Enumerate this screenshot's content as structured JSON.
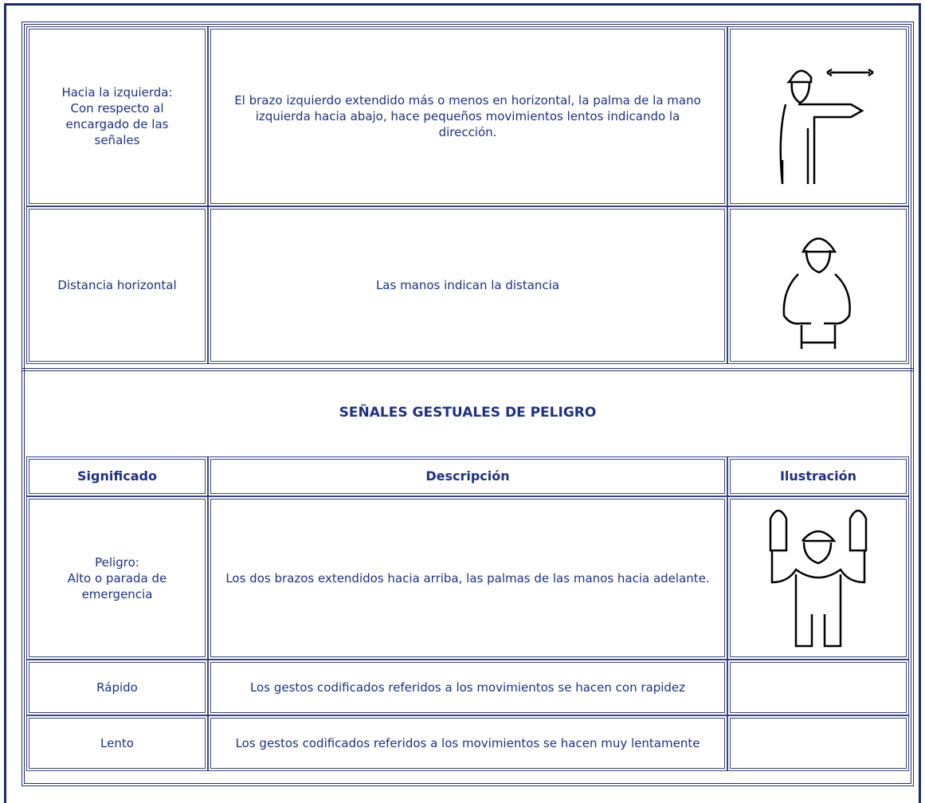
{
  "table_top": {
    "rows": [
      [
        "Hacia la izquierda:\nCon respecto al encargado de las señales",
        "El brazo izquierdo extendido más o menos en horizontal, la palma de la mano izquierda hacia abajo, hace pequeños movimientos lentos indicando la dirección."
      ],
      [
        "Distancia horizontal",
        "Las manos indican la distancia"
      ]
    ]
  },
  "section": {
    "title": "SEÑALES GESTUALES DE PELIGRO",
    "header": [
      "Significado",
      "Descripción",
      "Ilustración"
    ],
    "rows": [
      [
        "Peligro:\nAlto o parada de emergencia",
        "Los dos brazos extendidos hacia arriba, las palmas de las manos hacia adelante."
      ],
      [
        "Rápido",
        "Los gestos codificados referidos a los movimientos se hacen con rapidez"
      ],
      [
        "Lento",
        "Los gestos codificados referidos a los movimientos se hacen muy lentamente"
      ]
    ]
  }
}
